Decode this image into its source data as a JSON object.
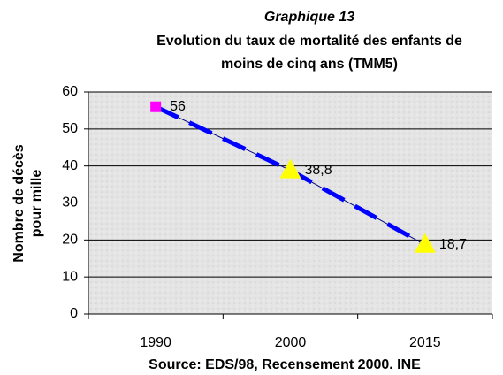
{
  "chart_data": {
    "type": "line",
    "title": "Graphique 13",
    "subtitle": [
      "Evolution du taux de mortalité des enfants de",
      "moins de cinq ans (TMM5)"
    ],
    "y_label": [
      "Nombre de décès",
      "pour mille"
    ],
    "source": "Source: EDS/98, Recensement 2000. INE",
    "categories": [
      "1990",
      "2000",
      "2015"
    ],
    "series": [
      {
        "values": [
          56,
          38.8,
          18.7
        ],
        "value_labels": [
          "56",
          "38,8",
          "18,7"
        ],
        "color": "#0000ff",
        "marker_colors": [
          "#ff00ff",
          "#ffff00",
          "#ffff00"
        ],
        "markers": [
          "square",
          "triangle",
          "triangle"
        ]
      }
    ],
    "ylim": [
      0,
      60
    ],
    "yticks": [
      0,
      10,
      20,
      30,
      40,
      50,
      60
    ],
    "grid": true
  }
}
